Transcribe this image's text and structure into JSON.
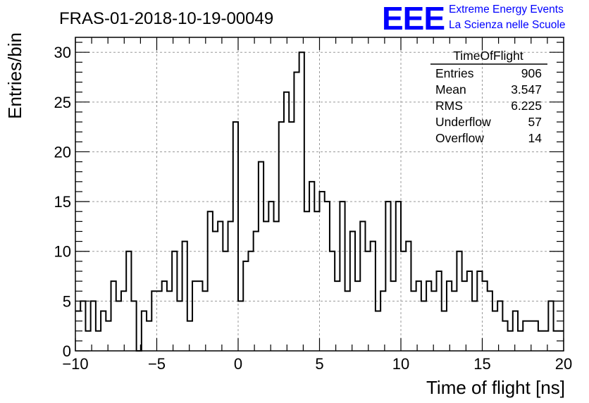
{
  "header": {
    "title": "FRAS-01-2018-10-19-00049",
    "logo": "EEE",
    "brand_line1": "Extreme Energy Events",
    "brand_line2": "La Scienza nelle Scuole"
  },
  "stats": {
    "name": "TimeOfFlight",
    "rows": [
      {
        "label": "Entries",
        "value": "906"
      },
      {
        "label": "Mean",
        "value": "3.547"
      },
      {
        "label": "RMS",
        "value": "6.225"
      },
      {
        "label": "Underflow",
        "value": "57"
      },
      {
        "label": "Overflow",
        "value": "14"
      }
    ]
  },
  "colors": {
    "histogram": "#000000",
    "grid": "#999999",
    "brand": "#0000ff"
  },
  "chart_data": {
    "type": "bar",
    "histogram_style": "step",
    "xlabel": "Time of flight [ns]",
    "ylabel": "Entries/bin",
    "xlim": [
      -10,
      20
    ],
    "ylim": [
      0,
      31.5
    ],
    "bin_width": 0.333,
    "grid": true,
    "x_ticks": [
      "−10",
      "−5",
      "0",
      "5",
      "10",
      "15",
      "20"
    ],
    "y_ticks": [
      "0",
      "5",
      "10",
      "15",
      "20",
      "25",
      "30"
    ],
    "values": [
      4,
      5,
      2,
      5,
      2,
      4,
      3,
      7,
      5,
      6,
      10,
      5,
      0,
      4,
      3,
      6,
      6,
      7,
      6,
      10,
      5,
      11,
      3,
      7,
      7,
      6,
      14,
      12,
      13,
      10,
      13,
      23,
      5,
      9,
      10,
      12,
      19,
      13,
      15,
      13,
      23,
      26,
      23,
      28,
      30,
      14,
      17,
      14,
      16,
      15,
      10,
      7,
      15,
      6,
      12,
      7,
      13,
      10,
      11,
      4,
      6,
      15,
      7,
      15,
      10,
      11,
      6,
      7,
      5,
      7,
      6,
      8,
      4,
      7,
      6,
      10,
      7,
      8,
      5,
      8,
      7,
      6,
      4,
      5,
      3,
      2,
      4,
      2,
      3,
      3,
      3,
      2,
      2,
      5,
      2,
      2
    ],
    "tick_marks": {
      "x_major": [
        -10,
        -5,
        0,
        5,
        10,
        15,
        20
      ],
      "y_major": [
        0,
        5,
        10,
        15,
        20,
        25,
        30
      ]
    }
  }
}
